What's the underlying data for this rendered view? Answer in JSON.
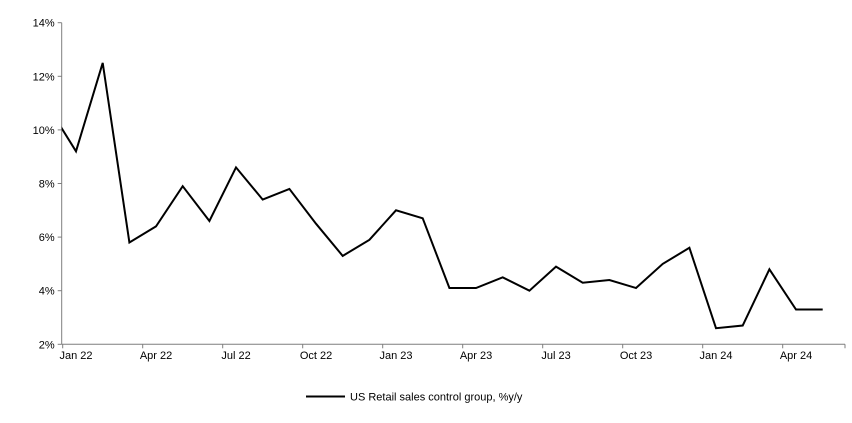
{
  "chart_data": {
    "type": "line",
    "title": "",
    "legend": "US Retail sales control group, %y/y",
    "legend_position": "bottom-center",
    "grid": false,
    "background": "#ffffff",
    "line_color": "#000000",
    "axis_color": "#7f7f7f",
    "ylim": [
      2,
      14
    ],
    "y_ticks": [
      "14%",
      "12%",
      "10%",
      "8%",
      "6%",
      "4%",
      "2%"
    ],
    "x_tick_labels": [
      "Jan 22",
      "Apr 22",
      "Jul 22",
      "Oct 22",
      "Jan 23",
      "Apr 23",
      "Jul 23",
      "Oct 23",
      "Jan 24",
      "Apr 24"
    ],
    "note": "First point (Dec 21) is partially clipped by the left axis",
    "series": [
      {
        "name": "US Retail sales control group, %y/y",
        "x": [
          "Dec 21",
          "Jan 22",
          "Feb 22",
          "Mar 22",
          "Apr 22",
          "May 22",
          "Jun 22",
          "Jul 22",
          "Aug 22",
          "Sep 22",
          "Oct 22",
          "Nov 22",
          "Dec 22",
          "Jan 23",
          "Feb 23",
          "Mar 23",
          "Apr 23",
          "May 23",
          "Jun 23",
          "Jul 23",
          "Aug 23",
          "Sep 23",
          "Oct 23",
          "Nov 23",
          "Dec 23",
          "Jan 24",
          "Feb 24",
          "Mar 24",
          "Apr 24",
          "May 24"
        ],
        "values": [
          10.8,
          9.2,
          12.5,
          5.8,
          6.4,
          7.9,
          6.6,
          8.6,
          7.4,
          7.8,
          6.5,
          5.3,
          5.9,
          7.0,
          6.7,
          4.1,
          4.1,
          4.5,
          4.0,
          4.9,
          4.3,
          4.4,
          4.1,
          5.0,
          5.6,
          2.6,
          2.7,
          4.8,
          3.3,
          3.3
        ]
      }
    ]
  }
}
